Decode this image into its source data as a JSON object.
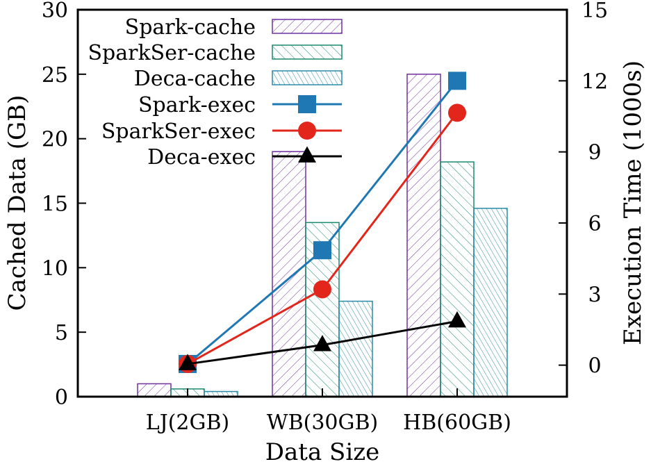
{
  "chart_data": {
    "type": "bar",
    "categories": [
      "LJ(2GB)",
      "WB(30GB)",
      "HB(60GB)"
    ],
    "xlabel": "Data Size",
    "ylabel": "Cached Data (GB)",
    "y2label": "Execution Time (1000s)",
    "ylim": [
      0,
      30
    ],
    "y2lim": [
      -1.33,
      15
    ],
    "yticks": [
      0,
      5,
      10,
      15,
      20,
      25,
      30
    ],
    "y2ticks": [
      0,
      3,
      6,
      9,
      12,
      15
    ],
    "legend_position": "top-left",
    "grid": false,
    "bar_series": [
      {
        "name": "Spark-cache",
        "values": [
          1.0,
          19.0,
          25.0
        ],
        "color": "#7030a0"
      },
      {
        "name": "SparkSer-cache",
        "values": [
          0.6,
          13.5,
          18.2
        ],
        "color": "#1a8a6e"
      },
      {
        "name": "Deca-cache",
        "values": [
          0.4,
          7.4,
          14.6
        ],
        "color": "#2a8aa6"
      }
    ],
    "line_series": [
      {
        "name": "Spark-exec",
        "values": [
          0.05,
          4.85,
          12.0
        ],
        "color": "#1f77b4",
        "marker": "square"
      },
      {
        "name": "SparkSer-exec",
        "values": [
          0.05,
          3.2,
          10.65
        ],
        "color": "#e3261b",
        "marker": "circle"
      },
      {
        "name": "Deca-exec",
        "values": [
          0.05,
          0.85,
          1.85
        ],
        "color": "#000000",
        "marker": "triangle"
      }
    ]
  }
}
